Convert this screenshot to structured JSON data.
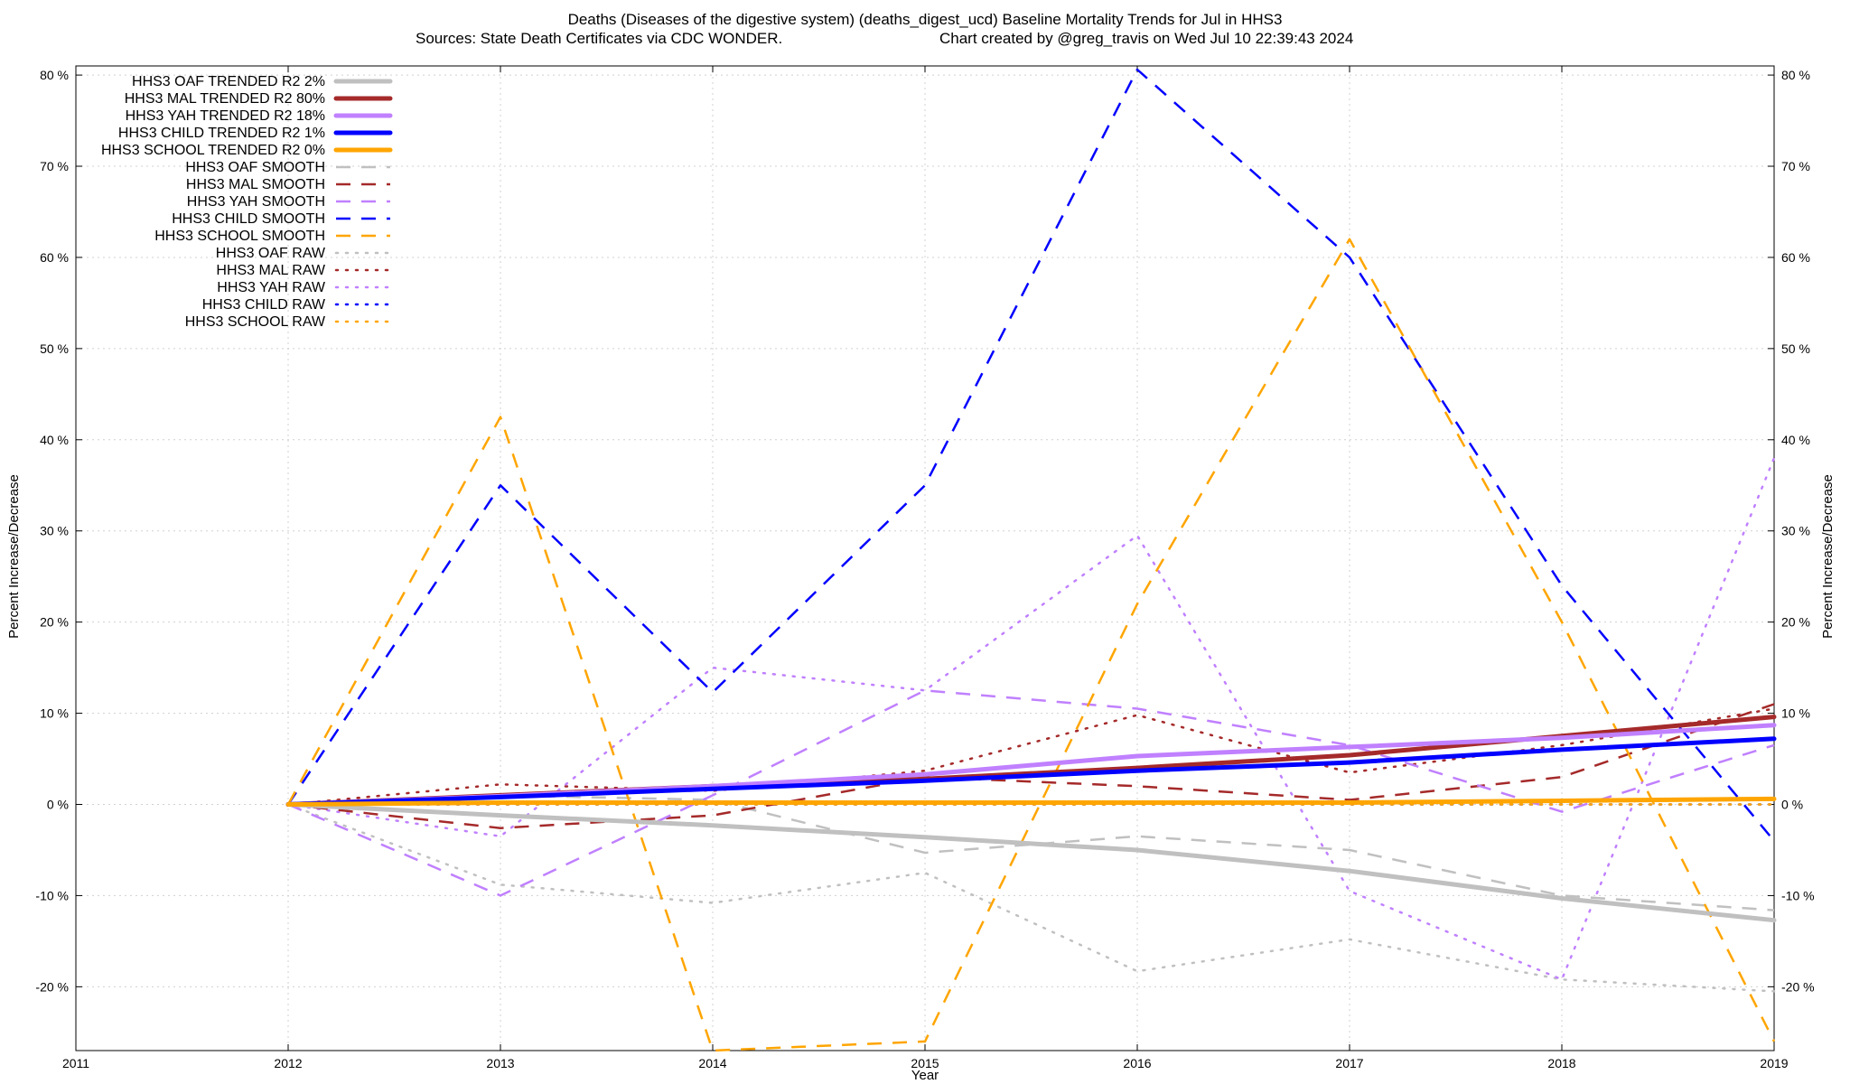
{
  "chart_data": {
    "type": "line",
    "title_line1": "Deaths (Diseases of the digestive system) (deaths_digest_ucd)  Baseline Mortality Trends for Jul in HHS3",
    "title_line2_left": "Sources: State Death Certificates via CDC WONDER.",
    "title_line2_right": "Chart created by @greg_travis on Wed Jul 10 22:39:43 2024",
    "xlabel": "Year",
    "ylabel_left": "Percent Increase/Decrease",
    "ylabel_right": "Percent Increase/Decrease",
    "xlim": [
      2011,
      2019
    ],
    "ylim": [
      -27,
      81
    ],
    "x_ticks": [
      2011,
      2012,
      2013,
      2014,
      2015,
      2016,
      2017,
      2018,
      2019
    ],
    "x_tick_labels": [
      "2011",
      "2012",
      "2013",
      "2014",
      "2015",
      "2016",
      "2017",
      "2018",
      "2019"
    ],
    "y_ticks": [
      -20,
      -10,
      0,
      10,
      20,
      30,
      40,
      50,
      60,
      70,
      80
    ],
    "y_tick_labels": [
      "-20 %",
      "-10 %",
      "0 %",
      "10 %",
      "20 %",
      "30 %",
      "40 %",
      "50 %",
      "60 %",
      "70 %",
      "80 %"
    ],
    "grid": true,
    "legend_position": "top-left",
    "x": [
      2012,
      2013,
      2014,
      2015,
      2016,
      2017,
      2018,
      2019
    ],
    "series": [
      {
        "name": "HHS3 OAF TRENDED R2",
        "r2": "2%",
        "color": "#c0c0c0",
        "style": "solid",
        "values": [
          0,
          -1.2,
          -2.3,
          -3.6,
          -5.0,
          -7.3,
          -10.3,
          -12.7
        ]
      },
      {
        "name": "HHS3 MAL TRENDED R2",
        "r2": "80%",
        "color": "#a52a2a",
        "style": "solid",
        "values": [
          0,
          1.0,
          2.0,
          2.8,
          4.0,
          5.4,
          7.5,
          9.6
        ]
      },
      {
        "name": "HHS3 YAH TRENDED R2",
        "r2": "18%",
        "color": "#c080ff",
        "style": "solid",
        "values": [
          0,
          0.9,
          2.0,
          3.3,
          5.3,
          6.3,
          7.3,
          8.7
        ]
      },
      {
        "name": "HHS3 CHILD TRENDED R2",
        "r2": "1%",
        "color": "#0000ff",
        "style": "solid",
        "values": [
          0,
          0.8,
          1.7,
          2.6,
          3.7,
          4.6,
          6.0,
          7.2
        ]
      },
      {
        "name": "HHS3 SCHOOL TRENDED R2",
        "r2": "0%",
        "color": "#ffa500",
        "style": "solid",
        "values": [
          0,
          0.2,
          0.2,
          0.2,
          0.2,
          0.2,
          0.4,
          0.6
        ]
      },
      {
        "name": "HHS3 OAF SMOOTH",
        "r2": "",
        "color": "#c0c0c0",
        "style": "dashed",
        "values": [
          0,
          1.0,
          0.5,
          -5.3,
          -3.5,
          -5.0,
          -10.0,
          -11.6
        ]
      },
      {
        "name": "HHS3 MAL SMOOTH",
        "r2": "",
        "color": "#a52a2a",
        "style": "dashed",
        "values": [
          0,
          -2.6,
          -1.2,
          3.0,
          2.0,
          0.5,
          3.0,
          11.0
        ]
      },
      {
        "name": "HHS3 YAH SMOOTH",
        "r2": "",
        "color": "#c080ff",
        "style": "dashed",
        "values": [
          0,
          -10.0,
          1.0,
          12.5,
          10.5,
          6.5,
          -0.8,
          6.5
        ]
      },
      {
        "name": "HHS3 CHILD SMOOTH",
        "r2": "",
        "color": "#0000ff",
        "style": "dashed",
        "values": [
          0,
          35.0,
          12.3,
          35.0,
          80.6,
          60.0,
          24.0,
          -4.0
        ]
      },
      {
        "name": "HHS3 SCHOOL SMOOTH",
        "r2": "",
        "color": "#ffa500",
        "style": "dashed",
        "values": [
          0,
          42.5,
          -27.0,
          -26.0,
          22.0,
          62.0,
          20.0,
          -26.0
        ]
      },
      {
        "name": "HHS3 OAF RAW",
        "r2": "",
        "color": "#c0c0c0",
        "style": "dotted",
        "values": [
          0,
          -8.8,
          -10.8,
          -7.5,
          -18.3,
          -14.8,
          -19.2,
          -20.5
        ]
      },
      {
        "name": "HHS3 MAL RAW",
        "r2": "",
        "color": "#a52a2a",
        "style": "dotted",
        "values": [
          0,
          2.2,
          1.5,
          3.7,
          9.8,
          3.5,
          6.5,
          10.5
        ]
      },
      {
        "name": "HHS3 YAH RAW",
        "r2": "",
        "color": "#c080ff",
        "style": "dotted",
        "values": [
          0,
          -3.5,
          15.0,
          12.5,
          29.5,
          -9.5,
          -19.2,
          38.0
        ]
      },
      {
        "name": "HHS3 CHILD RAW",
        "r2": "",
        "color": "#0000ff",
        "style": "dotted",
        "values": [
          0,
          0,
          0,
          0,
          0,
          0,
          0,
          0
        ]
      },
      {
        "name": "HHS3 SCHOOL RAW",
        "r2": "",
        "color": "#ffa500",
        "style": "dotted",
        "values": [
          0,
          0,
          0,
          0,
          0,
          0,
          0,
          0
        ]
      }
    ]
  }
}
